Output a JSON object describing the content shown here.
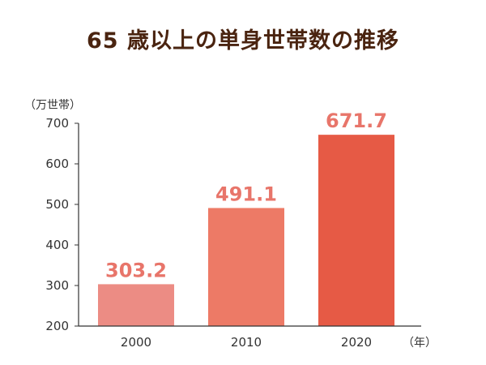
{
  "chart_data": {
    "type": "bar",
    "title": "65 歳以上の単身世帯数の推移",
    "ylabel": "（万世帯）",
    "xlabel": "（年）",
    "categories": [
      "2000",
      "2010",
      "2020"
    ],
    "values": [
      303.2,
      491.1,
      671.7
    ],
    "value_labels": [
      "303.2",
      "491.1",
      "671.7"
    ],
    "ylim": [
      200,
      700
    ],
    "yticks": [
      200,
      300,
      400,
      500,
      600,
      700
    ],
    "grid": false,
    "legend": "none",
    "colors": {
      "bars": [
        "#ec8c84",
        "#ed7a66",
        "#e65a45"
      ],
      "value_labels": "#e8756a",
      "title": "#4a2410",
      "axis": "#333333"
    }
  }
}
